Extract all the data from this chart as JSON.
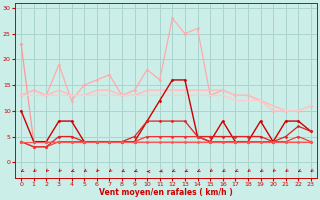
{
  "background_color": "#cceee8",
  "grid_color": "#aad4ce",
  "xlabel": "Vent moyen/en rafales ( km/h )",
  "xlabel_color": "#cc0000",
  "tick_color": "#cc0000",
  "ylim": [
    -3,
    31
  ],
  "yticks": [
    0,
    5,
    10,
    15,
    20,
    25,
    30
  ],
  "xlim": [
    -0.5,
    23.5
  ],
  "xticks": [
    0,
    1,
    2,
    3,
    4,
    5,
    6,
    7,
    8,
    9,
    10,
    11,
    12,
    13,
    14,
    15,
    16,
    17,
    18,
    19,
    20,
    21,
    22,
    23
  ],
  "series": [
    {
      "y": [
        23,
        4,
        4,
        4,
        4,
        4,
        4,
        4,
        4,
        4,
        4,
        4,
        4,
        4,
        4,
        4,
        4,
        4,
        4,
        4,
        4,
        4,
        4,
        4
      ],
      "color": "#ff9999",
      "lw": 0.9,
      "marker": "D",
      "ms": 1.5
    },
    {
      "y": [
        13,
        14,
        13,
        19,
        12,
        15,
        16,
        17,
        13,
        14,
        18,
        16,
        28,
        25,
        26,
        13,
        14,
        13,
        13,
        12,
        10,
        10,
        10,
        11
      ],
      "color": "#ffaaaa",
      "lw": 0.9,
      "marker": "D",
      "ms": 1.5
    },
    {
      "y": [
        13,
        14,
        13,
        14,
        13,
        13,
        14,
        14,
        13,
        13,
        14,
        14,
        14,
        14,
        14,
        14,
        14,
        13,
        13,
        12,
        11,
        10,
        10,
        11
      ],
      "color": "#ffbbbb",
      "lw": 1.0,
      "marker": null,
      "ms": 0
    },
    {
      "y": [
        13,
        13,
        13,
        13,
        13,
        13,
        13,
        13,
        13,
        13,
        13,
        13,
        13,
        13,
        13,
        13,
        13,
        12,
        12,
        12,
        10,
        10,
        10,
        11
      ],
      "color": "#ffcccc",
      "lw": 1.0,
      "marker": null,
      "ms": 0
    },
    {
      "y": [
        10,
        4,
        4,
        8,
        8,
        4,
        4,
        4,
        4,
        4,
        8,
        12,
        16,
        16,
        5,
        4,
        8,
        4,
        4,
        8,
        4,
        8,
        8,
        6
      ],
      "color": "#cc0000",
      "lw": 1.0,
      "marker": "D",
      "ms": 1.5
    },
    {
      "y": [
        4,
        3,
        3,
        5,
        5,
        4,
        4,
        4,
        4,
        5,
        8,
        8,
        8,
        8,
        5,
        5,
        5,
        5,
        5,
        5,
        4,
        5,
        7,
        6
      ],
      "color": "#dd2222",
      "lw": 0.9,
      "marker": "D",
      "ms": 1.5
    },
    {
      "y": [
        4,
        3,
        3,
        4,
        4,
        4,
        4,
        4,
        4,
        4,
        5,
        5,
        5,
        5,
        5,
        4,
        4,
        4,
        4,
        4,
        4,
        4,
        5,
        4
      ],
      "color": "#ee3333",
      "lw": 0.8,
      "marker": "D",
      "ms": 1.5
    },
    {
      "y": [
        4,
        4,
        4,
        4,
        4,
        4,
        4,
        4,
        4,
        4,
        4,
        4,
        4,
        4,
        4,
        4,
        4,
        4,
        4,
        4,
        4,
        4,
        4,
        4
      ],
      "color": "#ff5555",
      "lw": 0.8,
      "marker": "D",
      "ms": 1.5
    }
  ],
  "arrow_angles": [
    200,
    210,
    220,
    215,
    200,
    205,
    220,
    210,
    200,
    195,
    180,
    190,
    200,
    195,
    200,
    210,
    205,
    200,
    210,
    205,
    215,
    210,
    200,
    210
  ],
  "wind_arrow_color": "#cc0000"
}
